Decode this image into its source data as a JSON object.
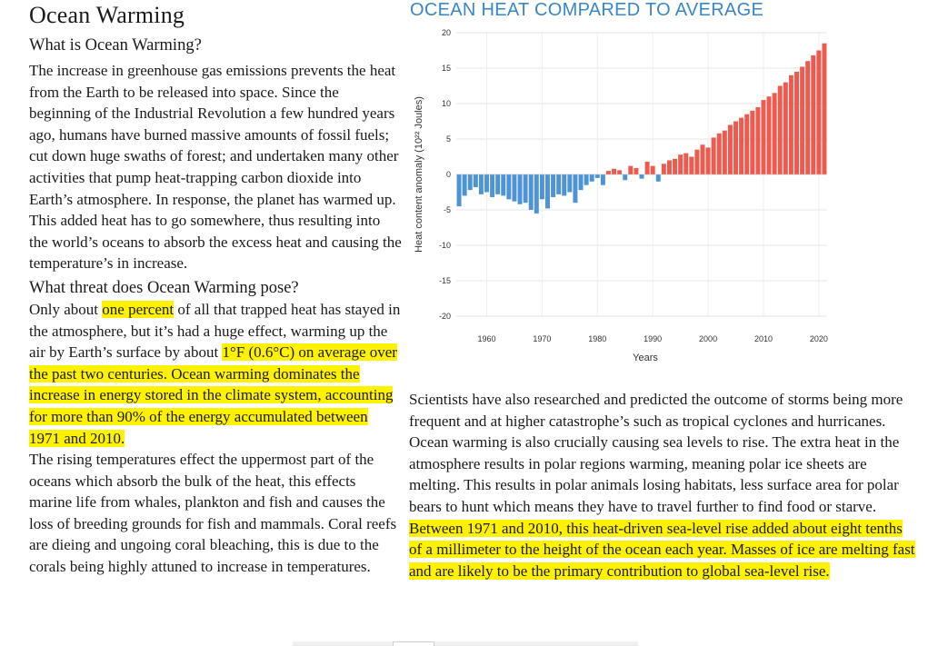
{
  "page": {
    "title": "Ocean Warming",
    "section1_heading": "What is Ocean Warming?",
    "section1_body": "The increase in greenhouse gas emissions prevents the heat from the Earth to be released into space. Since the beginning of the Industrial Revolution a few hundred years ago, humans have burned massive amounts of fossil fuels; cut down huge swaths of forest; and undertaken many other activities that pump heat-trapping carbon dioxide into Earth’s atmosphere. In response, the planet has warmed up. This added heat has to go somewhere, thus resulting into the world’s oceans to absorb the excess heat and causing the temperature’s in increase.",
    "section2_heading": "What threat does Ocean Warming pose?",
    "section2_p1_a": "Only about ",
    "section2_p1_hl1": "one percent",
    "section2_p1_b": " of all that trapped heat has stayed in the atmosphere, but it’s had a huge effect, warming up the air by Earth’s surface by about ",
    "section2_p1_hl2": "1°F (0.6°C) on average over the past two centuries. Ocean warming dominates the increase in energy stored in the climate system, accounting for more than 90% of the energy accumulated between 1971 and 2010.",
    "section2_p2": "The rising temperatures effect the uppermost part of the oceans which absorb the bulk of the heat, this effects marine life from whales, plankton and fish and causes the loss of breeding grounds for fish and mammals. Coral reefs are dieing and ungoing coral bleaching, this is due to the corals being highly attuned to increase in temperatures.",
    "right_p1": "Scientists have also researched and predicted the outcome of storms being more frequent and at higher catastrophe’s such as tropical cyclones and hurricanes.",
    "right_p2_a": "Ocean warming is also crucially causing sea levels to rise. The extra heat in the atmosphere results in polar regions warming, meaning polar ice sheets are melting. This results in polar animals losing habitats, less surface area for polar bears to hunt which means they have to travel further to find food or starve. ",
    "right_p2_hl": "Between 1971 and 2010, this heat-driven sea-level rise added about eight tenths of a millimeter to the height of the ocean each year. Masses of ice are melting fast and are likely to be the primary contribution to global sea-level rise."
  },
  "colors": {
    "highlight": "#fff200",
    "chart_title": "#3a86c8",
    "positive_bar": "#ef5a4f",
    "negative_bar": "#4e94d4"
  },
  "chart_data": {
    "type": "bar",
    "title": "OCEAN HEAT COMPARED TO AVERAGE",
    "xlabel": "Years",
    "ylabel": "Heat content anomaly (10²² Joules)",
    "xlim": [
      1955,
      2021
    ],
    "ylim": [
      -20,
      20
    ],
    "yticks": [
      20,
      15,
      10,
      5,
      0,
      -5,
      -10,
      -15,
      -20
    ],
    "xticks": [
      1960,
      1970,
      1980,
      1990,
      2000,
      2010,
      2020
    ],
    "grid": true,
    "series": [
      {
        "x": [
          1955,
          1956,
          1957,
          1958,
          1959,
          1960,
          1961,
          1962,
          1963,
          1964,
          1965,
          1966,
          1967,
          1968,
          1969,
          1970,
          1971,
          1972,
          1973,
          1974,
          1975,
          1976,
          1977,
          1978,
          1979,
          1980,
          1981,
          1982,
          1983,
          1984,
          1985,
          1986,
          1987,
          1988,
          1989,
          1990,
          1991,
          1992,
          1993,
          1994,
          1995,
          1996,
          1997,
          1998,
          1999,
          2000,
          2001,
          2002,
          2003,
          2004,
          2005,
          2006,
          2007,
          2008,
          2009,
          2010,
          2011,
          2012,
          2013,
          2014,
          2015,
          2016,
          2017,
          2018,
          2019,
          2020,
          2021
        ],
        "values": [
          -4.5,
          -3.0,
          -2.2,
          -1.8,
          -2.8,
          -2.5,
          -3.2,
          -2.8,
          -3.0,
          -3.5,
          -3.8,
          -4.2,
          -4.0,
          -5.0,
          -5.5,
          -3.5,
          -4.8,
          -3.2,
          -2.8,
          -3.0,
          -2.5,
          -4.0,
          -2.2,
          -1.5,
          -1.0,
          -0.5,
          -1.5,
          0.5,
          0.8,
          0.6,
          -0.8,
          1.2,
          0.9,
          -0.6,
          1.8,
          1.2,
          -1.0,
          1.5,
          2.0,
          2.2,
          2.8,
          3.0,
          2.5,
          3.5,
          4.2,
          3.8,
          5.2,
          5.8,
          6.2,
          7.0,
          7.5,
          8.0,
          8.5,
          9.0,
          9.5,
          10.5,
          11.0,
          11.5,
          12.5,
          13.0,
          14.0,
          14.5,
          15.2,
          16.0,
          16.8,
          17.5,
          18.5
        ]
      }
    ]
  }
}
